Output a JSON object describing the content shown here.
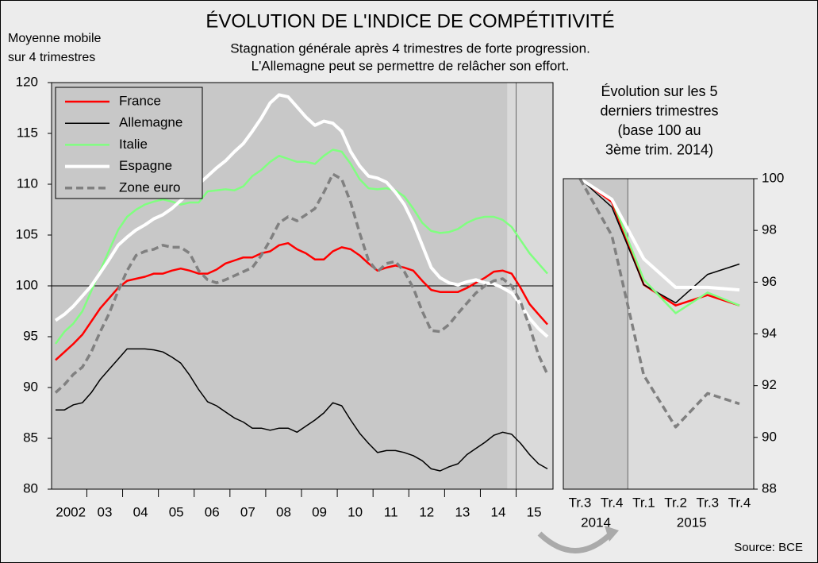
{
  "chart_data": [
    {
      "type": "line",
      "title": "ÉVOLUTION DE L'INDICE DE COMPÉTITIVITÉ",
      "subtitle": [
        "Stagnation générale après 4 trimestres de forte progression.",
        "L'Allemagne peut se permettre de relâcher son effort."
      ],
      "ylabel": [
        "Moyenne mobile",
        "sur 4 trimestres"
      ],
      "categories": [
        "2002",
        null,
        null,
        null,
        "03",
        null,
        null,
        null,
        "04",
        null,
        null,
        null,
        "05",
        null,
        null,
        null,
        "06",
        null,
        null,
        null,
        "07",
        null,
        null,
        null,
        "08",
        null,
        null,
        null,
        "09",
        null,
        null,
        null,
        "10",
        null,
        null,
        null,
        "11",
        null,
        null,
        null,
        "12",
        null,
        null,
        null,
        "13",
        null,
        null,
        null,
        "14",
        null,
        null,
        null,
        "15",
        null,
        null,
        null
      ],
      "ylim": [
        80,
        120
      ],
      "yticks": [
        80,
        85,
        90,
        95,
        100,
        105,
        110,
        115,
        120
      ],
      "reference_line": 100,
      "legend": "top-left",
      "series": [
        {
          "name": "France",
          "color": "#ff0000",
          "values": [
            92.7,
            93.5,
            94.3,
            95.2,
            96.5,
            97.8,
            98.8,
            99.8,
            100.5,
            100.7,
            100.9,
            101.2,
            101.2,
            101.5,
            101.7,
            101.5,
            101.2,
            101.2,
            101.6,
            102.2,
            102.5,
            102.8,
            102.8,
            103.2,
            103.4,
            104.0,
            104.2,
            103.6,
            103.2,
            102.6,
            102.6,
            103.4,
            103.8,
            103.6,
            103.0,
            102.2,
            101.5,
            101.8,
            102.0,
            101.8,
            101.5,
            100.5,
            99.6,
            99.4,
            99.4,
            99.4,
            99.8,
            100.3,
            100.8,
            101.4,
            101.5,
            101.2,
            99.8,
            98.2,
            97.2,
            96.2
          ]
        },
        {
          "name": "Allemagne",
          "color": "#000000",
          "values": [
            87.8,
            87.8,
            88.3,
            88.5,
            89.5,
            90.8,
            91.8,
            92.8,
            93.8,
            93.8,
            93.8,
            93.7,
            93.5,
            93.0,
            92.4,
            91.2,
            89.8,
            88.6,
            88.2,
            87.6,
            87.0,
            86.6,
            86.0,
            86.0,
            85.8,
            86.0,
            86.0,
            85.6,
            86.2,
            86.8,
            87.5,
            88.5,
            88.2,
            86.8,
            85.5,
            84.5,
            83.6,
            83.8,
            83.8,
            83.6,
            83.3,
            82.8,
            82.0,
            81.8,
            82.2,
            82.5,
            83.4,
            84.0,
            84.6,
            85.3,
            85.6,
            85.4,
            84.5,
            83.4,
            82.5,
            82.0
          ]
        },
        {
          "name": "Italie",
          "color": "#80ff80",
          "values": [
            94.3,
            95.5,
            96.3,
            97.5,
            99.5,
            101.5,
            103.5,
            105.5,
            106.8,
            107.5,
            108.0,
            108.3,
            108.5,
            108.3,
            108.0,
            108.2,
            108.2,
            109.3,
            109.4,
            109.5,
            109.4,
            109.8,
            110.8,
            111.4,
            112.2,
            112.8,
            112.5,
            112.2,
            112.2,
            112.0,
            112.8,
            113.4,
            113.2,
            112.0,
            110.5,
            109.6,
            109.5,
            109.6,
            109.4,
            108.8,
            107.6,
            106.2,
            105.4,
            105.2,
            105.3,
            105.6,
            106.2,
            106.6,
            106.8,
            106.8,
            106.5,
            105.8,
            104.5,
            103.2,
            102.2,
            101.2
          ]
        },
        {
          "name": "Espagne",
          "color": "#ffffff",
          "values": [
            96.6,
            97.2,
            98.0,
            99.0,
            100.0,
            101.3,
            102.6,
            104.0,
            104.8,
            105.5,
            106.0,
            106.6,
            107.0,
            107.6,
            108.4,
            109.2,
            110.0,
            110.8,
            111.6,
            112.3,
            113.2,
            114.0,
            115.2,
            116.5,
            118.0,
            118.8,
            118.6,
            117.6,
            116.6,
            115.8,
            116.2,
            116.0,
            115.2,
            113.2,
            111.8,
            110.8,
            110.6,
            110.2,
            109.2,
            108.0,
            106.2,
            104.0,
            101.8,
            100.8,
            100.3,
            100.1,
            100.4,
            100.6,
            100.3,
            100.2,
            99.8,
            99.3,
            98.2,
            96.8,
            95.8,
            95.0
          ]
        },
        {
          "name": "Zone euro",
          "color": "#808080",
          "dashed": true,
          "values": [
            89.5,
            90.3,
            91.3,
            92.0,
            93.5,
            95.5,
            97.3,
            99.5,
            101.5,
            103.0,
            103.4,
            103.6,
            104.0,
            103.8,
            103.8,
            103.2,
            101.5,
            100.6,
            100.3,
            100.6,
            101.0,
            101.4,
            101.8,
            103.0,
            104.5,
            106.2,
            106.8,
            106.4,
            107.0,
            107.6,
            109.2,
            111.0,
            110.5,
            108.2,
            105.2,
            102.5,
            101.4,
            102.2,
            102.4,
            101.4,
            99.8,
            97.5,
            95.6,
            95.5,
            96.2,
            97.3,
            98.3,
            99.3,
            100.0,
            100.5,
            100.7,
            100.0,
            98.4,
            96.0,
            93.2,
            91.3
          ]
        }
      ]
    },
    {
      "type": "line",
      "title": [
        "Évolution sur les 5",
        "derniers trimestres",
        "(base 100 au",
        "3ème trim. 2014)"
      ],
      "categories": [
        "Tr.3",
        "Tr.4",
        "Tr.1",
        "Tr.2",
        "Tr.3",
        "Tr.4"
      ],
      "categories_level2": [
        "2014",
        null,
        "2015",
        null,
        null,
        null
      ],
      "ylim": [
        88,
        100
      ],
      "yticks": [
        88,
        90,
        92,
        94,
        96,
        98,
        100
      ],
      "y_axis_side": "right",
      "series": [
        {
          "name": "France",
          "color": "#ff0000",
          "values": [
            100,
            99.1,
            95.9,
            95.1,
            95.5,
            95.1
          ]
        },
        {
          "name": "Allemagne",
          "color": "#000000",
          "values": [
            100,
            98.9,
            95.9,
            95.2,
            96.3,
            96.7
          ]
        },
        {
          "name": "Italie",
          "color": "#80ff80",
          "values": [
            100,
            99.2,
            96.1,
            94.8,
            95.6,
            95.1
          ]
        },
        {
          "name": "Espagne",
          "color": "#ffffff",
          "values": [
            100,
            99.2,
            96.9,
            95.8,
            95.8,
            95.7
          ]
        },
        {
          "name": "Zone euro",
          "color": "#808080",
          "dashed": true,
          "values": [
            100,
            97.8,
            92.4,
            90.4,
            91.7,
            91.3
          ]
        }
      ]
    }
  ],
  "source": "Source: BCE"
}
